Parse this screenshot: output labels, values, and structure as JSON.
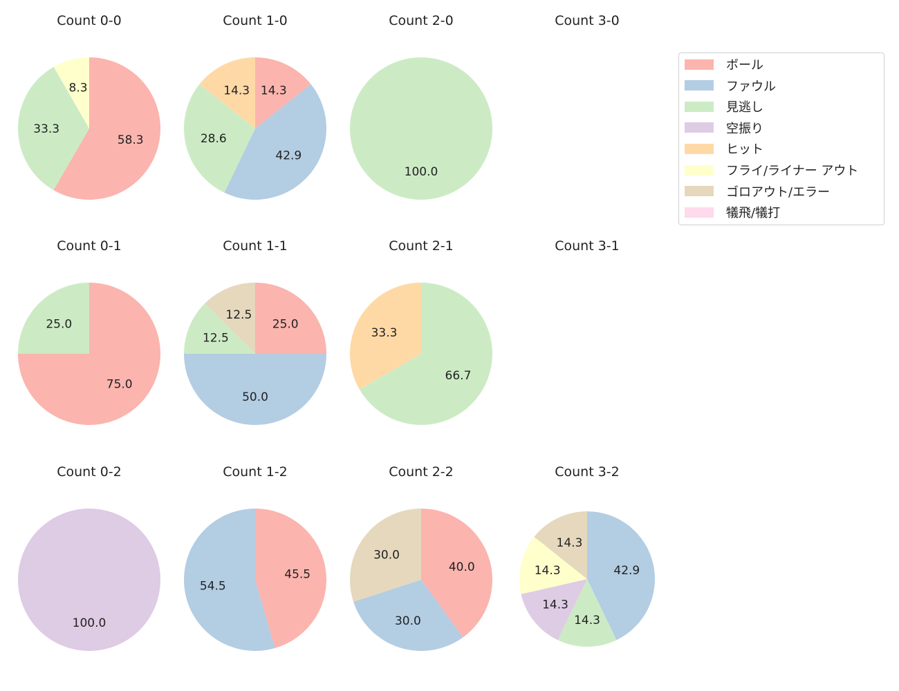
{
  "chart_data": {
    "type": "pie",
    "direction": "clockwise",
    "start": "top",
    "legend_position": "right",
    "categories": [
      "ボール",
      "ファウル",
      "見逃し",
      "空振り",
      "ヒット",
      "フライ/ライナー アウト",
      "ゴロアウト/エラー",
      "犠飛/犠打"
    ],
    "colors": [
      "#fbb4ae",
      "#b3cde3",
      "#ccebc5",
      "#decbe4",
      "#fed9a6",
      "#ffffcc",
      "#e5d8bd",
      "#fddaec"
    ],
    "charts": [
      {
        "title": "Count 0-0",
        "values": [
          58.3,
          0,
          33.3,
          0,
          0,
          8.3,
          0,
          0
        ]
      },
      {
        "title": "Count 1-0",
        "values": [
          14.3,
          42.9,
          28.6,
          0,
          14.3,
          0,
          0,
          0
        ]
      },
      {
        "title": "Count 2-0",
        "values": [
          0,
          0,
          100.0,
          0,
          0,
          0,
          0,
          0
        ]
      },
      {
        "title": "Count 3-0",
        "values": []
      },
      {
        "title": "Count 0-1",
        "values": [
          75.0,
          0,
          25.0,
          0,
          0,
          0,
          0,
          0
        ]
      },
      {
        "title": "Count 1-1",
        "values": [
          25.0,
          50.0,
          12.5,
          0,
          0,
          0,
          12.5,
          0
        ]
      },
      {
        "title": "Count 2-1",
        "values": [
          0,
          0,
          66.7,
          0,
          33.3,
          0,
          0,
          0
        ]
      },
      {
        "title": "Count 3-1",
        "values": []
      },
      {
        "title": "Count 0-2",
        "values": [
          0,
          0,
          0,
          100.0,
          0,
          0,
          0,
          0
        ]
      },
      {
        "title": "Count 1-2",
        "values": [
          45.5,
          54.5,
          0,
          0,
          0,
          0,
          0,
          0
        ]
      },
      {
        "title": "Count 2-2",
        "values": [
          40.0,
          30.0,
          0,
          0,
          0,
          0,
          30.0,
          0
        ]
      },
      {
        "title": "Count 3-2",
        "values": [
          0,
          42.9,
          14.3,
          14.3,
          0,
          14.3,
          14.3,
          0
        ]
      }
    ]
  }
}
